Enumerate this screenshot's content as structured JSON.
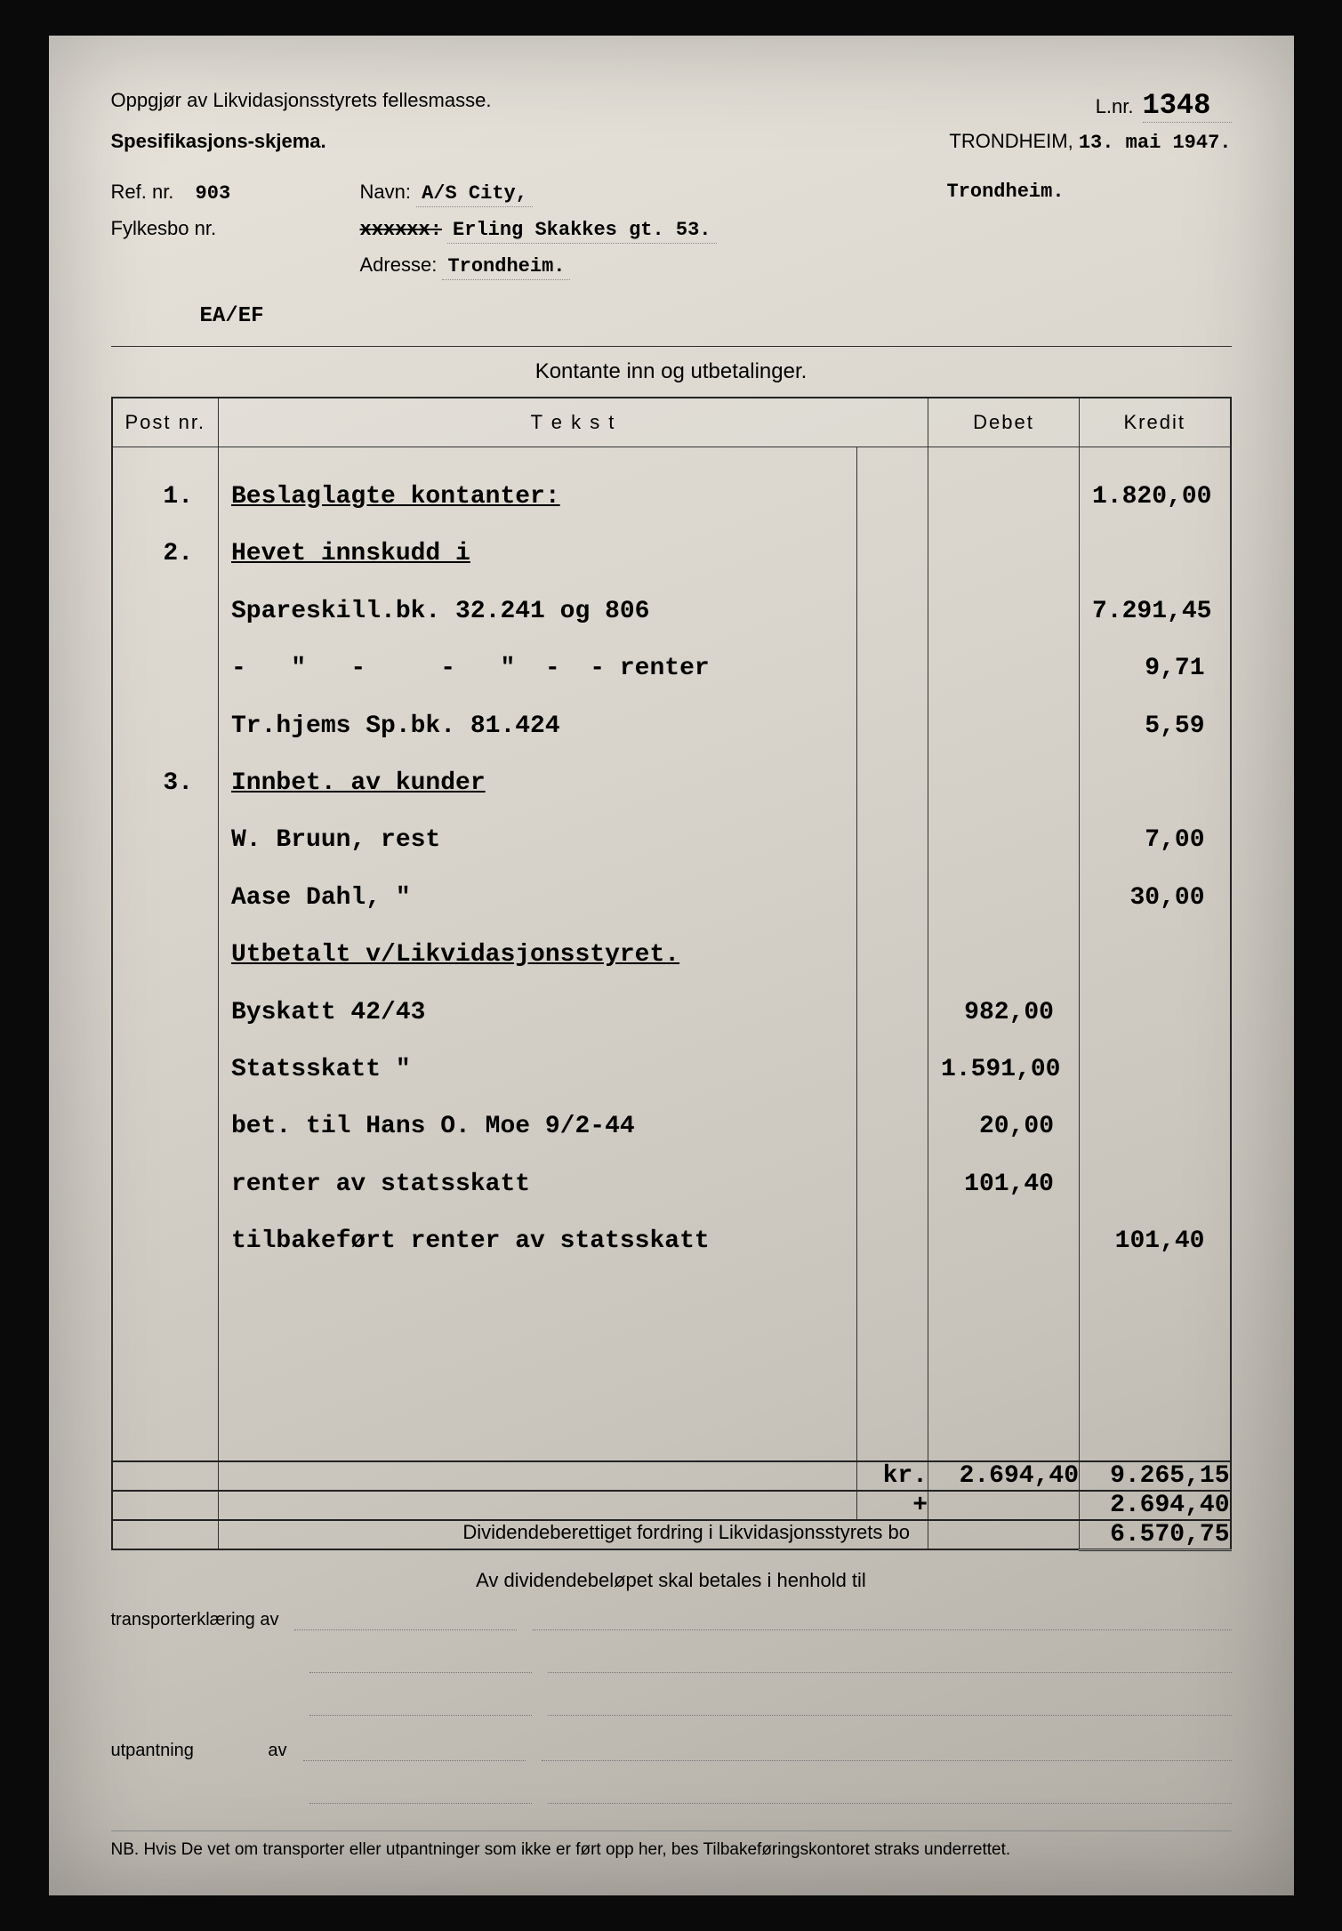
{
  "header": {
    "title_left": "Oppgjør av Likvidasjonsstyrets fellesmasse.",
    "subtitle_left": "Spesifikasjons-skjema.",
    "lnr_label": "L.nr.",
    "lnr_value": "1348",
    "place": "TRONDHEIM,",
    "date_typed": "13. mai 1947."
  },
  "meta": {
    "ref_label": "Ref. nr.",
    "ref_value": "903",
    "navn_label": "Navn:",
    "navn_value": "A/S City,",
    "navn_place": "Trondheim.",
    "fylkesbo_label": "Fylkesbo nr.",
    "striked_label": "xxxxxx:",
    "addr1_value": "Erling Skakkes gt. 53.",
    "adresse_label": "Adresse:",
    "adresse_value": "Trondheim.",
    "initials": "EA/EF"
  },
  "table": {
    "subheader": "Kontante inn og utbetalinger.",
    "cols": {
      "post": "Post nr.",
      "tekst": "T e k s t",
      "debet": "Debet",
      "kredit": "Kredit"
    },
    "post_lines": [
      "1.",
      "2.",
      " ",
      " ",
      " ",
      "3."
    ],
    "tekst_lines": [
      {
        "t": "Beslaglagte kontanter:",
        "u": true
      },
      {
        "t": "Hevet innskudd i",
        "u": true
      },
      {
        "t": "Spareskill.bk. 32.241 og 806",
        "u": false
      },
      {
        "t": "-   \"   -     -   \"  -  - renter",
        "u": false
      },
      {
        "t": "Tr.hjems Sp.bk. 81.424",
        "u": false
      },
      {
        "t": "Innbet. av kunder",
        "u": true
      },
      {
        "t": "W. Bruun, rest",
        "u": false
      },
      {
        "t": "Aase Dahl, \"",
        "u": false
      },
      {
        "t": "Utbetalt v/Likvidasjonsstyret.",
        "u": true
      },
      {
        "t": "Byskatt 42/43",
        "u": false
      },
      {
        "t": "Statsskatt \"",
        "u": false
      },
      {
        "t": "bet. til Hans O. Moe 9/2-44",
        "u": false
      },
      {
        "t": "renter av statsskatt",
        "u": false
      },
      {
        "t": "tilbakeført renter av statsskatt",
        "u": false
      }
    ],
    "debet_lines": [
      " ",
      " ",
      " ",
      " ",
      " ",
      " ",
      " ",
      " ",
      " ",
      "982,00",
      "1.591,00",
      "20,00",
      "101,40",
      " "
    ],
    "kredit_lines": [
      "1.820,00",
      " ",
      "7.291,45",
      "9,71",
      "5,59",
      " ",
      "7,00",
      "30,00",
      " ",
      " ",
      " ",
      " ",
      " ",
      "101,40"
    ],
    "sum_label": "kr.",
    "sum_debet": "2.694,40",
    "sum_kredit": "9.265,15",
    "plus": "+",
    "transfer": "2.694,40",
    "div_label": "Dividendeberettiget fordring i Likvidasjonsstyrets bo",
    "div_value": "6.570,75"
  },
  "footer": {
    "line1": "Av dividendebeløpet skal betales i henhold til",
    "transport_label": "transporterklæring av",
    "utpantning_label": "utpantning",
    "av": "av",
    "nb": "NB. Hvis De vet om transporter eller utpantninger som ikke er ført opp her, bes Tilbakeføringskontoret straks underrettet."
  }
}
